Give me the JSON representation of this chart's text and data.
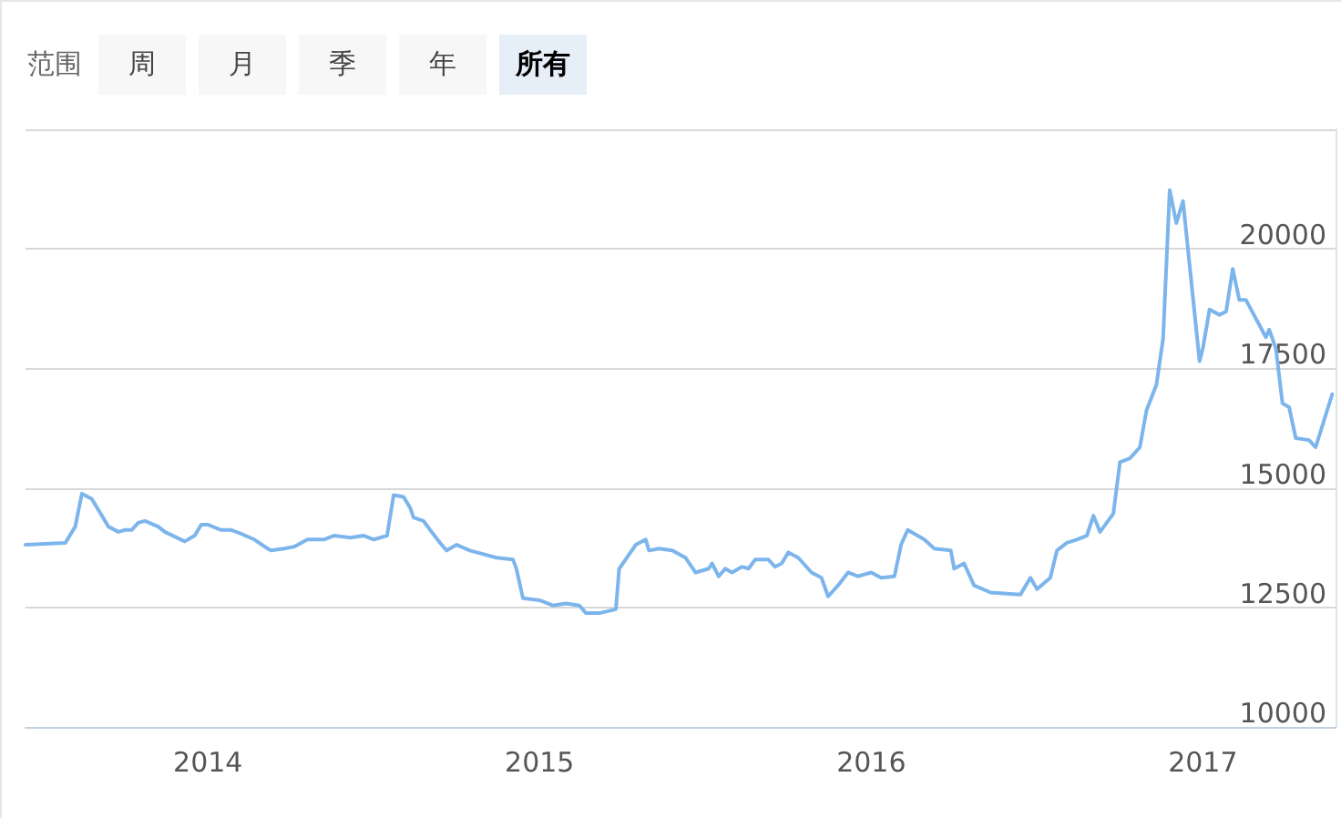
{
  "chart_data": {
    "type": "line",
    "annotations": [
      "范围",
      "周",
      "月",
      "季",
      "年",
      "所有"
    ],
    "xlim": [
      2013.45,
      2017.4
    ],
    "xticks": [
      {
        "value": 2014,
        "label": "2014"
      },
      {
        "value": 2015,
        "label": "2015"
      },
      {
        "value": 2016,
        "label": "2016"
      },
      {
        "value": 2017,
        "label": "2017"
      }
    ],
    "ylim": [
      10000,
      22500
    ],
    "yticks": [
      10000,
      12500,
      15000,
      17500,
      20000,
      {
        "value": 22500,
        "label": null
      }
    ],
    "grid": "y",
    "marker": "none",
    "line_style": "solid",
    "series": [
      {
        "color": "#7cb5ec",
        "x": [
          2013.45,
          2013.57,
          2013.6,
          2013.62,
          2013.65,
          2013.7,
          2013.73,
          2013.75,
          2013.77,
          2013.79,
          2013.81,
          2013.85,
          2013.87,
          2013.93,
          2013.96,
          2013.98,
          2014.0,
          2014.04,
          2014.07,
          2014.1,
          2014.14,
          2014.18,
          2014.19,
          2014.23,
          2014.26,
          2014.3,
          2014.35,
          2014.38,
          2014.43,
          2014.47,
          2014.5,
          2014.54,
          2014.56,
          2014.59,
          2014.61,
          2014.62,
          2014.65,
          2014.67,
          2014.7,
          2014.72,
          2014.75,
          2014.79,
          2014.87,
          2014.92,
          2014.93,
          2014.95,
          2015.0,
          2015.04,
          2015.08,
          2015.12,
          2015.14,
          2015.18,
          2015.23,
          2015.24,
          2015.29,
          2015.32,
          2015.33,
          2015.36,
          2015.4,
          2015.44,
          2015.47,
          2015.51,
          2015.52,
          2015.54,
          2015.56,
          2015.58,
          2015.61,
          2015.63,
          2015.65,
          2015.69,
          2015.71,
          2015.73,
          2015.75,
          2015.78,
          2015.82,
          2015.85,
          2015.87,
          2015.9,
          2015.93,
          2015.96,
          2016.0,
          2016.03,
          2016.07,
          2016.09,
          2016.11,
          2016.16,
          2016.19,
          2016.24,
          2016.25,
          2016.28,
          2016.31,
          2016.36,
          2016.45,
          2016.48,
          2016.5,
          2016.54,
          2016.56,
          2016.59,
          2016.62,
          2016.65,
          2016.67,
          2016.69,
          2016.73,
          2016.75,
          2016.78,
          2016.81,
          2016.83,
          2016.86,
          2016.88,
          2016.9,
          2016.92,
          2016.94,
          2016.99,
          2017.0,
          2017.02,
          2017.05,
          2017.07,
          2017.09,
          2017.11,
          2017.13,
          2017.19,
          2017.2,
          2017.22,
          2017.24,
          2017.26,
          2017.28,
          2017.32,
          2017.34,
          2017.39
        ],
        "values": [
          13810,
          13850,
          14190,
          14880,
          14770,
          14190,
          14080,
          14120,
          14120,
          14270,
          14310,
          14190,
          14080,
          13880,
          14000,
          14230,
          14230,
          14120,
          14120,
          14040,
          13920,
          13730,
          13690,
          13730,
          13770,
          13920,
          13920,
          14000,
          13960,
          14000,
          13920,
          14000,
          14850,
          14810,
          14580,
          14380,
          14310,
          14120,
          13850,
          13690,
          13810,
          13690,
          13540,
          13500,
          13310,
          12690,
          12650,
          12540,
          12580,
          12540,
          12380,
          12380,
          12460,
          13310,
          13810,
          13920,
          13690,
          13730,
          13690,
          13540,
          13230,
          13310,
          13420,
          13150,
          13310,
          13230,
          13350,
          13310,
          13500,
          13500,
          13350,
          13420,
          13650,
          13540,
          13230,
          13120,
          12730,
          12960,
          13230,
          13150,
          13230,
          13120,
          13150,
          13810,
          14120,
          13920,
          13730,
          13690,
          13310,
          13420,
          12960,
          12810,
          12770,
          13120,
          12880,
          13120,
          13690,
          13850,
          13920,
          14000,
          14420,
          14080,
          14460,
          15540,
          15620,
          15850,
          16620,
          17160,
          18120,
          21230,
          20540,
          21000,
          17650,
          17920,
          18730,
          18620,
          18690,
          19580,
          18930,
          18930,
          18150,
          18310,
          17920,
          16770,
          16690,
          16040,
          16000,
          15850,
          16960
        ]
      }
    ]
  }
}
